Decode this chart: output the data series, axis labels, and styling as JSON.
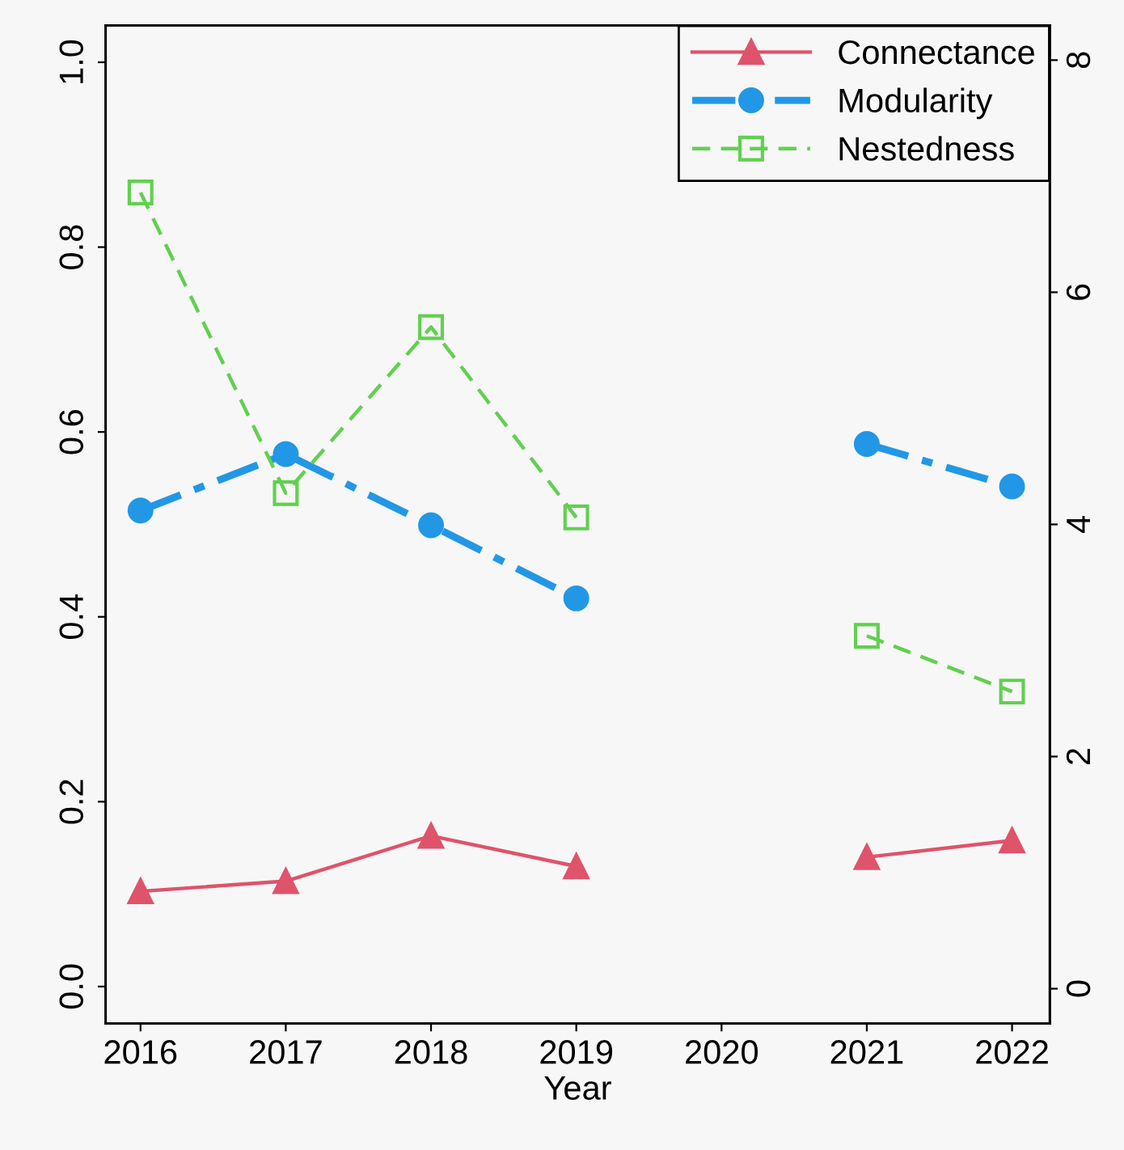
{
  "chart_data": {
    "type": "line",
    "xlabel": "Year",
    "x": [
      2016,
      2017,
      2018,
      2019,
      2020,
      2021,
      2022
    ],
    "xlim": [
      2015.76,
      2022.26
    ],
    "xticks": [
      2016,
      2017,
      2018,
      2019,
      2020,
      2021,
      2022
    ],
    "ylim": [
      -0.04,
      1.04
    ],
    "yticks": [
      {
        "value": 0,
        "label": "0.0"
      },
      {
        "value": 0.2,
        "label": "0.2"
      },
      {
        "value": 0.4,
        "label": "0.4"
      },
      {
        "value": 0.6,
        "label": "0.6"
      },
      {
        "value": 0.8,
        "label": "0.8"
      },
      {
        "value": 1,
        "label": "1.0"
      }
    ],
    "y2lim": [
      -0.3,
      8.3
    ],
    "y2ticks": [
      0,
      2,
      4,
      6,
      8
    ],
    "legend": "top right",
    "grid": false,
    "series": [
      {
        "name": "Connectance",
        "color": "#df536b",
        "marker": "triangle",
        "line_style": "solid",
        "values": [
          0.103,
          0.114,
          0.163,
          0.13,
          null,
          0.14,
          0.158
        ]
      },
      {
        "name": "Modularity",
        "color": "#2297e6",
        "marker": "circle",
        "line_style": "dashdot",
        "values": [
          0.515,
          0.576,
          0.499,
          0.42,
          null,
          0.587,
          0.541
        ]
      },
      {
        "name": "Nestedness",
        "color": "#61d04f",
        "marker": "square",
        "line_style": "dashed",
        "axis": "y2",
        "values": [
          6.86,
          4.27,
          5.7,
          4.06,
          null,
          3.04,
          2.56
        ]
      }
    ]
  }
}
